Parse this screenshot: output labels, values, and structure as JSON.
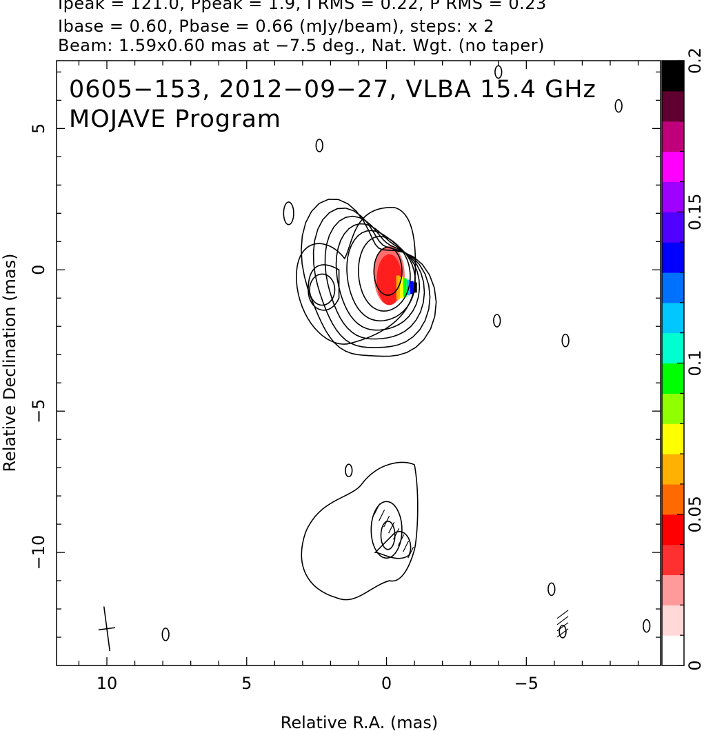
{
  "header": {
    "line1": "Ipeak = 121.0, Ppeak = 1.9, I RMS = 0.22, P RMS = 0.23",
    "line2": "Ibase = 0.60, Pbase = 0.66 (mJy/beam), steps: x 2",
    "line3": "Beam: 1.59x0.60 mas at −7.5 deg., Nat. Wgt. (no taper)"
  },
  "panel": {
    "title_line1": "0605−153, 2012−09−27, VLBA 15.4 GHz",
    "title_line2": "MOJAVE Program"
  },
  "chart_data": {
    "type": "heatmap",
    "xlabel": "Relative R.A. (mas)",
    "ylabel": "Relative Declination (mas)",
    "xlim": [
      11.8,
      -9.8
    ],
    "ylim": [
      -14.0,
      7.4
    ],
    "x_reversed": true,
    "x_ticks": [
      10,
      5,
      0,
      -5
    ],
    "x_tick_labels": [
      "10",
      "5",
      "0",
      "−5"
    ],
    "y_ticks": [
      5,
      0,
      -5,
      -10
    ],
    "y_tick_labels": [
      "5",
      "0",
      "−5",
      "−10"
    ],
    "colorbar": {
      "range": [
        0,
        0.2
      ],
      "ticks": [
        0,
        0.05,
        0.1,
        0.15,
        0.2
      ],
      "tick_labels": [
        "0",
        "0.05",
        "0.1",
        "0.15",
        "0.2"
      ],
      "colors": [
        "#ffffff",
        "#ffd8d8",
        "#ff9a9a",
        "#ff3030",
        "#ff0000",
        "#ff6a00",
        "#ffb000",
        "#ffff00",
        "#90ff00",
        "#00ff00",
        "#00ffd0",
        "#00c8ff",
        "#0070ff",
        "#0000ff",
        "#5000ff",
        "#a000ff",
        "#ff00ff",
        "#c0007a",
        "#600030",
        "#000000"
      ]
    },
    "contours": {
      "core_center": [
        -0.05,
        -0.05
      ],
      "core_radii": [
        [
          0.5,
          0.85
        ],
        [
          0.9,
          1.35
        ],
        [
          1.15,
          1.65
        ],
        [
          1.35,
          1.95
        ],
        [
          1.55,
          2.25
        ],
        [
          1.75,
          2.55
        ],
        [
          1.95,
          2.85
        ]
      ],
      "secondary_peak": [
        2.3,
        -0.7
      ],
      "southern_component_center": [
        -0.1,
        -9.2
      ],
      "noise_islands": [
        [
          3.5,
          2.0
        ],
        [
          -3.95,
          -1.8
        ],
        [
          -6.4,
          -2.5
        ],
        [
          7.9,
          -12.9
        ],
        [
          -6.3,
          -12.8
        ],
        [
          -4.0,
          7.0
        ],
        [
          -8.3,
          5.8
        ],
        [
          2.4,
          4.4
        ],
        [
          1.35,
          -7.1
        ],
        [
          -5.9,
          -11.3
        ],
        [
          -9.3,
          -12.6
        ]
      ]
    },
    "polarization_patch_center": [
      -0.1,
      -0.2
    ],
    "beam": {
      "major_mas": 1.59,
      "minor_mas": 0.6,
      "pa_deg": -7.5,
      "center": [
        10.0,
        -12.7
      ]
    }
  },
  "colors": {
    "contour": "#000000",
    "pol_red": "#ff1e1e",
    "pol_pink": "#ff6e6e",
    "background": "#ffffff"
  }
}
